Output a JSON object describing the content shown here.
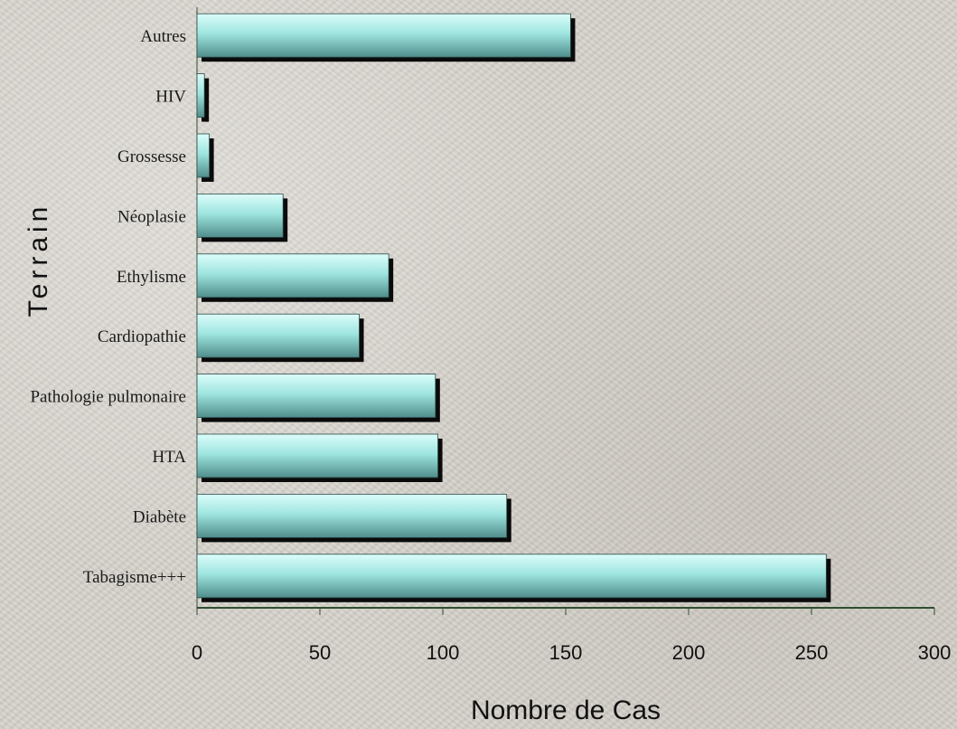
{
  "chart_data": {
    "type": "bar",
    "orientation": "horizontal",
    "categories": [
      "Tabagisme+++",
      "Diabète",
      "HTA",
      "Pathologie pulmonaire",
      "Cardiopathie",
      "Ethylisme",
      "Néoplasie",
      "Grossesse",
      "HIV",
      "Autres"
    ],
    "values": [
      256,
      126,
      98,
      97,
      66,
      78,
      35,
      5,
      3,
      152
    ],
    "xlabel": "Nombre de Cas",
    "ylabel": "Terrain",
    "xlim": [
      0,
      300
    ],
    "xticks": [
      0,
      50,
      100,
      150,
      200,
      250,
      300
    ],
    "grid": false,
    "colors": {
      "bar_light": "#dcfdfa",
      "bar_mid": "#9fe5e0",
      "bar_dark": "#4f8d8b",
      "shadow": "#0a0a0a",
      "axis": "#2f4f2f"
    }
  }
}
